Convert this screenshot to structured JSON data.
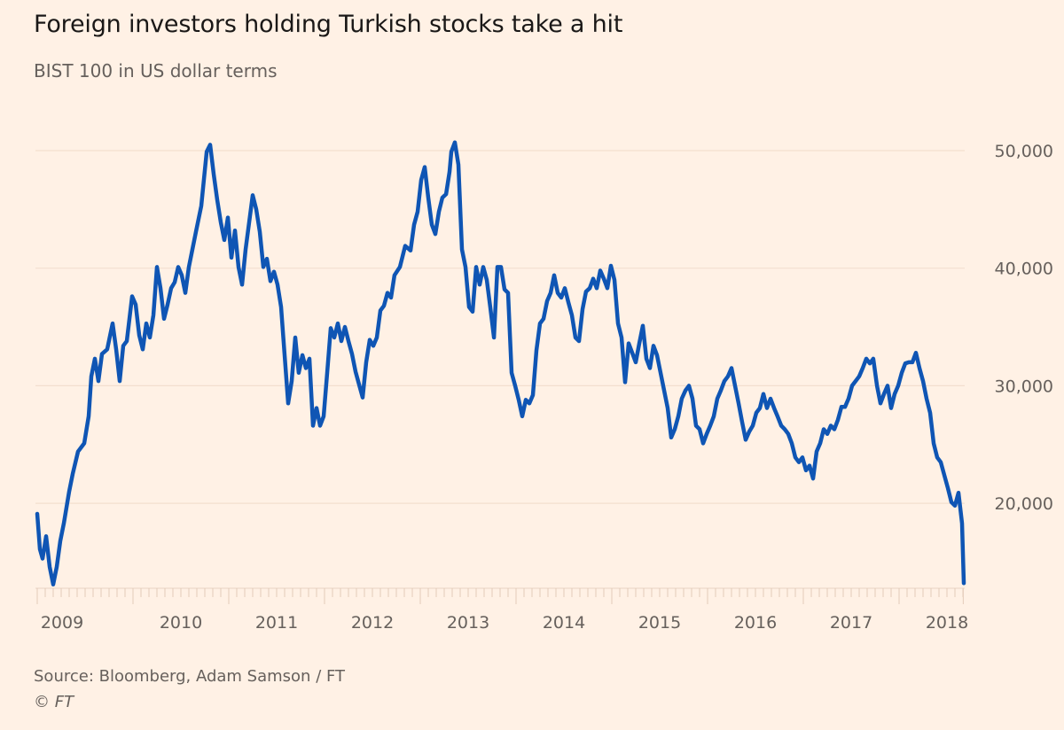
{
  "header": {
    "title": "Foreign investors holding Turkish stocks take a hit",
    "subtitle": "BIST 100 in US dollar terms"
  },
  "footer": {
    "source": "Source: Bloomberg, Adam Samson / FT",
    "copyright": "© FT"
  },
  "colors": {
    "background": "#fff1e5",
    "line": "#0f55b4",
    "gridline": "#f3dfcf",
    "text": "#66605c"
  },
  "chart_data": {
    "type": "line",
    "title": "Foreign investors holding Turkish stocks take a hit",
    "subtitle": "BIST 100 in US dollar terms",
    "xlabel": "",
    "ylabel": "",
    "xlim": [
      2009.0,
      2018.67
    ],
    "ylim": [
      12000,
      51500
    ],
    "grid": true,
    "legend": "none",
    "y_ticks": [
      20000,
      30000,
      40000,
      50000
    ],
    "y_tick_labels": [
      "20,000",
      "30,000",
      "40,000",
      "50,000"
    ],
    "x_ticks": [
      2009,
      2010,
      2011,
      2012,
      2013,
      2014,
      2015,
      2016,
      2017,
      2018
    ],
    "x_tick_labels": [
      "2009",
      "2010",
      "2011",
      "2012",
      "2013",
      "2014",
      "2015",
      "2016",
      "2017",
      "2018"
    ],
    "series": [
      {
        "name": "BIST 100 (USD)",
        "x": [
          2009.0,
          2009.028,
          2009.056,
          2009.093,
          2009.13,
          2009.167,
          2009.204,
          2009.241,
          2009.278,
          2009.333,
          2009.37,
          2009.426,
          2009.491,
          2009.537,
          2009.565,
          2009.602,
          2009.639,
          2009.676,
          2009.731,
          2009.787,
          2009.824,
          2009.861,
          2009.898,
          2009.935,
          2009.991,
          2010.028,
          2010.065,
          2010.102,
          2010.139,
          2010.176,
          2010.213,
          2010.25,
          2010.287,
          2010.324,
          2010.361,
          2010.398,
          2010.435,
          2010.472,
          2010.509,
          2010.546,
          2010.583,
          2010.62,
          2010.657,
          2010.713,
          2010.769,
          2010.806,
          2010.843,
          2010.88,
          2010.917,
          2010.954,
          2010.991,
          2011.028,
          2011.065,
          2011.102,
          2011.139,
          2011.176,
          2011.213,
          2011.25,
          2011.287,
          2011.324,
          2011.361,
          2011.398,
          2011.435,
          2011.472,
          2011.509,
          2011.546,
          2011.583,
          2011.62,
          2011.657,
          2011.694,
          2011.731,
          2011.769,
          2011.806,
          2011.843,
          2011.88,
          2011.917,
          2011.954,
          2011.991,
          2012.028,
          2012.065,
          2012.102,
          2012.139,
          2012.176,
          2012.213,
          2012.25,
          2012.287,
          2012.324,
          2012.361,
          2012.398,
          2012.435,
          2012.472,
          2012.509,
          2012.546,
          2012.583,
          2012.62,
          2012.657,
          2012.694,
          2012.731,
          2012.787,
          2012.843,
          2012.898,
          2012.935,
          2012.972,
          2013.009,
          2013.046,
          2013.083,
          2013.12,
          2013.157,
          2013.194,
          2013.231,
          2013.269,
          2013.306,
          2013.324,
          2013.361,
          2013.398,
          2013.435,
          2013.472,
          2013.509,
          2013.546,
          2013.583,
          2013.62,
          2013.657,
          2013.694,
          2013.731,
          2013.769,
          2013.806,
          2013.843,
          2013.88,
          2013.917,
          2013.954,
          2013.991,
          2014.028,
          2014.065,
          2014.102,
          2014.139,
          2014.176,
          2014.213,
          2014.25,
          2014.287,
          2014.324,
          2014.361,
          2014.398,
          2014.435,
          2014.472,
          2014.509,
          2014.546,
          2014.583,
          2014.62,
          2014.657,
          2014.694,
          2014.731,
          2014.769,
          2014.806,
          2014.843,
          2014.88,
          2014.917,
          2014.954,
          2014.991,
          2015.028,
          2015.065,
          2015.102,
          2015.139,
          2015.176,
          2015.213,
          2015.25,
          2015.287,
          2015.324,
          2015.361,
          2015.398,
          2015.435,
          2015.472,
          2015.509,
          2015.546,
          2015.583,
          2015.62,
          2015.657,
          2015.694,
          2015.731,
          2015.769,
          2015.806,
          2015.843,
          2015.88,
          2015.917,
          2015.954,
          2015.991,
          2016.028,
          2016.065,
          2016.102,
          2016.139,
          2016.176,
          2016.213,
          2016.25,
          2016.287,
          2016.324,
          2016.361,
          2016.398,
          2016.435,
          2016.472,
          2016.509,
          2016.546,
          2016.583,
          2016.62,
          2016.657,
          2016.694,
          2016.731,
          2016.769,
          2016.806,
          2016.843,
          2016.88,
          2016.917,
          2016.954,
          2016.991,
          2017.028,
          2017.065,
          2017.102,
          2017.139,
          2017.176,
          2017.213,
          2017.25,
          2017.287,
          2017.324,
          2017.361,
          2017.398,
          2017.435,
          2017.472,
          2017.509,
          2017.546,
          2017.583,
          2017.62,
          2017.657,
          2017.694,
          2017.731,
          2017.769,
          2017.806,
          2017.843,
          2017.88,
          2017.917,
          2017.954,
          2017.991,
          2018.028,
          2018.065,
          2018.102,
          2018.139,
          2018.176,
          2018.213,
          2018.25,
          2018.287,
          2018.324,
          2018.361,
          2018.398,
          2018.435,
          2018.472,
          2018.509,
          2018.546,
          2018.583,
          2018.62,
          2018.657,
          2018.676
        ],
        "values": [
          19100,
          16100,
          15300,
          17200,
          14600,
          13100,
          14600,
          16800,
          18300,
          21000,
          22500,
          24400,
          25100,
          27400,
          30800,
          32300,
          30400,
          32700,
          33100,
          35300,
          33100,
          30400,
          33400,
          33800,
          37600,
          36900,
          34300,
          33100,
          35300,
          34100,
          36000,
          40100,
          38300,
          35700,
          36900,
          38300,
          38800,
          40100,
          39400,
          37900,
          40100,
          41600,
          43100,
          45300,
          49900,
          50500,
          48000,
          45800,
          43900,
          42400,
          44300,
          40900,
          43200,
          40100,
          38600,
          41600,
          43900,
          46200,
          45000,
          43100,
          40100,
          40800,
          38900,
          39700,
          38600,
          36700,
          32600,
          28500,
          30400,
          34100,
          31100,
          32600,
          31500,
          32300,
          26600,
          28100,
          26600,
          27400,
          31100,
          34900,
          34100,
          35300,
          33800,
          35000,
          33800,
          32700,
          31200,
          30100,
          29000,
          32000,
          33900,
          33400,
          34100,
          36400,
          36800,
          37900,
          37500,
          39400,
          40100,
          41900,
          41500,
          43700,
          44800,
          47500,
          48600,
          46000,
          43700,
          42900,
          44800,
          46000,
          46300,
          48200,
          49900,
          50700,
          48800,
          41600,
          40100,
          36700,
          36300,
          40100,
          38600,
          40100,
          39000,
          36700,
          34100,
          40100,
          40100,
          38200,
          37900,
          31100,
          30000,
          28800,
          27400,
          28800,
          28500,
          29200,
          33000,
          35300,
          35700,
          37200,
          37900,
          39400,
          37900,
          37500,
          38300,
          37100,
          36000,
          34100,
          33800,
          36500,
          38000,
          38300,
          39100,
          38300,
          39800,
          39100,
          38300,
          40200,
          39000,
          35300,
          34100,
          30300,
          33600,
          32800,
          32000,
          33600,
          35100,
          32300,
          31500,
          33400,
          32600,
          31100,
          29600,
          28100,
          25600,
          26300,
          27400,
          28900,
          29600,
          30000,
          28900,
          26600,
          26300,
          25100,
          25900,
          26600,
          27400,
          28900,
          29600,
          30400,
          30800,
          31500,
          30000,
          28500,
          26900,
          25400,
          26100,
          26600,
          27700,
          28100,
          29300,
          28100,
          28900,
          28100,
          27400,
          26600,
          26300,
          25900,
          25100,
          23900,
          23500,
          23900,
          22800,
          23200,
          22100,
          24400,
          25100,
          26300,
          25900,
          26600,
          26300,
          27100,
          28200,
          28200,
          28900,
          30000,
          30400,
          30800,
          31500,
          32300,
          31900,
          32300,
          30000,
          28500,
          29300,
          30000,
          28100,
          29300,
          30000,
          31100,
          31900,
          32000,
          32000,
          32800,
          31500,
          30400,
          28900,
          27700,
          25100,
          23900,
          23500,
          22400,
          21300,
          20100,
          19800,
          20900,
          18300,
          13200
        ]
      }
    ]
  }
}
